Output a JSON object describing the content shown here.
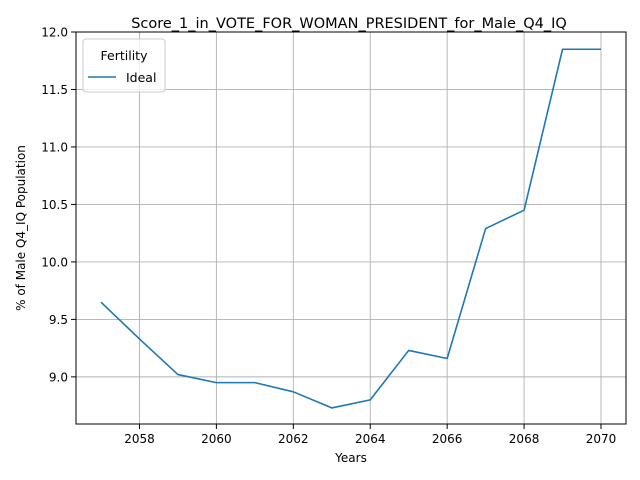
{
  "chart_data": {
    "type": "line",
    "title": "Score_1_in_VOTE_FOR_WOMAN_PRESIDENT_for_Male_Q4_IQ",
    "xlabel": "Years",
    "ylabel": "% of Male Q4_IQ Population",
    "x": [
      2057,
      2058,
      2059,
      2060,
      2061,
      2062,
      2063,
      2064,
      2065,
      2066,
      2067,
      2068,
      2069,
      2070
    ],
    "series": [
      {
        "name": "Ideal",
        "color": "#1f77b4",
        "values": [
          9.65,
          9.33,
          9.02,
          8.95,
          8.95,
          8.87,
          8.73,
          8.8,
          9.23,
          9.16,
          10.29,
          10.45,
          11.85,
          11.85
        ]
      }
    ],
    "xlim": [
      2056.35,
      2070.65
    ],
    "ylim": [
      8.59,
      12.0
    ],
    "xticks": [
      "2058",
      "2060",
      "2062",
      "2064",
      "2066",
      "2068",
      "2070"
    ],
    "yticks": [
      "9.0",
      "9.5",
      "10.0",
      "10.5",
      "11.0",
      "11.5",
      "12.0"
    ],
    "grid": true,
    "legend": {
      "title": "Fertility",
      "placement": "upper-left"
    }
  }
}
